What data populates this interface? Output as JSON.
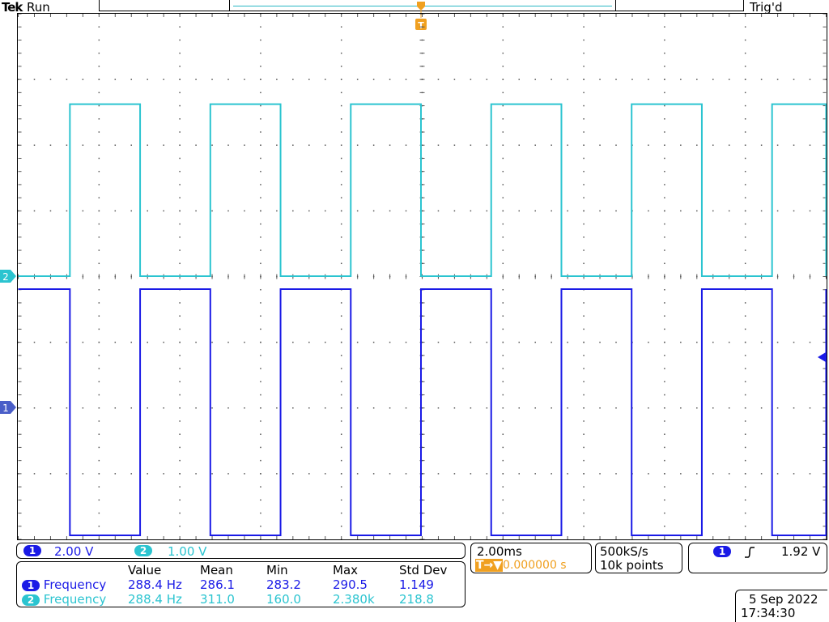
{
  "status_bar": {
    "brand": "Tek",
    "run_state": "Run",
    "trigger_status": "Trig'd"
  },
  "trigger_marker": "T",
  "channel_markers": {
    "ch2": "2",
    "ch1": "1"
  },
  "channels": {
    "ch1": {
      "number": "1",
      "scale": "2.00 V",
      "color": "#1a1ae6"
    },
    "ch2": {
      "number": "2",
      "scale": "1.00 V",
      "color": "#2bc4d0"
    }
  },
  "timebase": {
    "scale": "2.00ms",
    "trigger_position_symbol": "T→▼",
    "trigger_position_value": "0.000000 s"
  },
  "acquisition": {
    "sample_rate": "500kS/s",
    "record_length": "10k points"
  },
  "trigger": {
    "source": "1",
    "slope_icon": "rising-edge-icon",
    "level": "1.92 V"
  },
  "measurements": {
    "headers": [
      "Value",
      "Mean",
      "Min",
      "Max",
      "Std Dev"
    ],
    "rows": [
      {
        "channel": "1",
        "name": "Frequency",
        "value": "288.4 Hz",
        "mean": "286.1",
        "min": "283.2",
        "max": "290.5",
        "std_dev": "1.149"
      },
      {
        "channel": "2",
        "name": "Frequency",
        "value": "288.4 Hz",
        "mean": "311.0",
        "min": "160.0",
        "max": "2.380k",
        "std_dev": "218.8"
      }
    ]
  },
  "datetime": {
    "date": "5 Sep 2022",
    "time": "17:34:30"
  },
  "colors": {
    "ch1": "#1a1ae6",
    "ch2": "#2bc4d0",
    "trigger": "#f0a020"
  }
}
